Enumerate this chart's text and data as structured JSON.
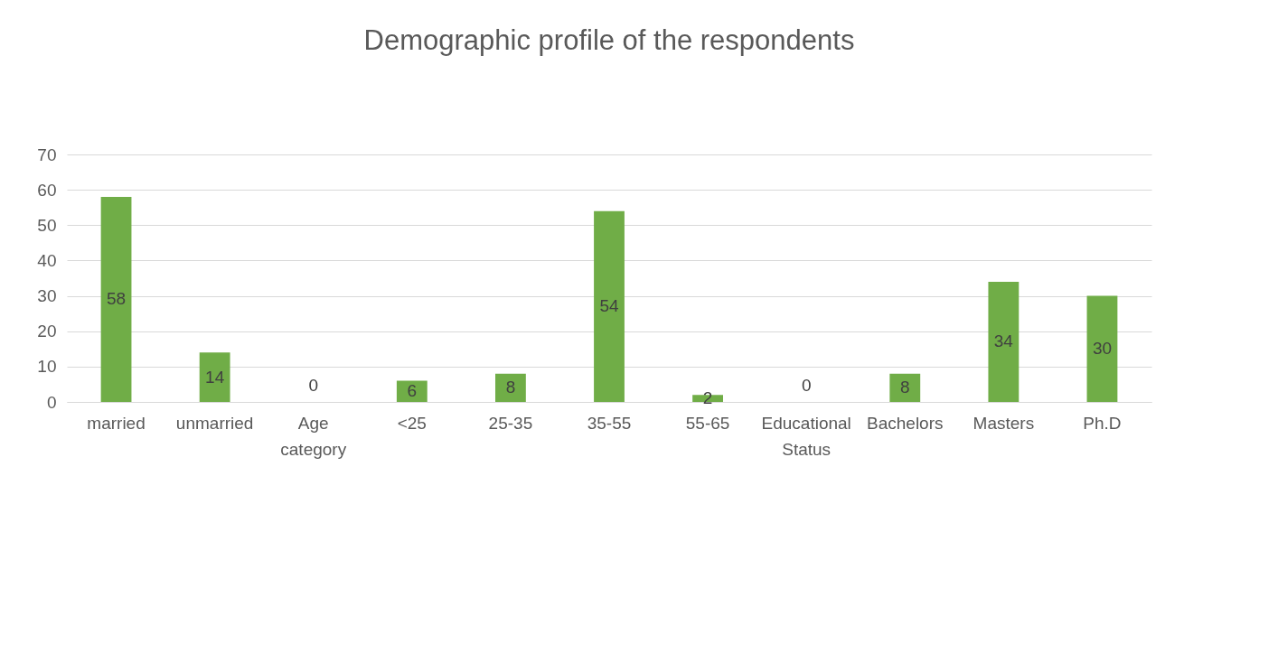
{
  "chart_data": {
    "type": "bar",
    "title": "Demographic profile of the respondents",
    "categories": [
      "married",
      "unmarried",
      "Age category",
      "<25",
      "25-35",
      "35-55",
      "55-65",
      "Educational Status",
      "Bachelors",
      "Masters",
      "Ph.D"
    ],
    "values": [
      58,
      14,
      0,
      6,
      8,
      54,
      2,
      0,
      8,
      34,
      30
    ],
    "color": "#70ad47",
    "ylim": [
      0,
      70
    ],
    "yticks": [
      0,
      10,
      20,
      30,
      40,
      50,
      60,
      70
    ],
    "grid": "y",
    "data_labels": true
  }
}
